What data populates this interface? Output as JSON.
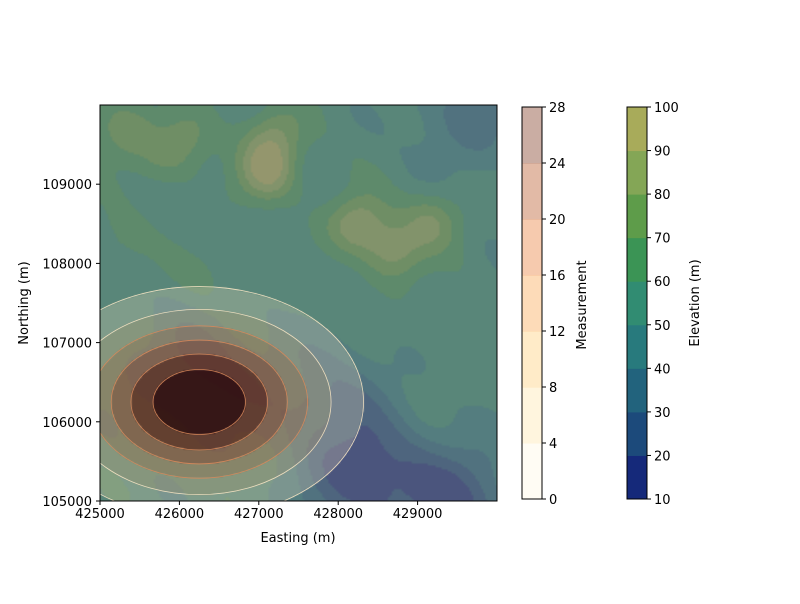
{
  "chart_data": {
    "type": "heatmap",
    "title": "",
    "xlabel": "Easting (m)",
    "ylabel": "Northing (m)",
    "xlim": [
      425000,
      430000
    ],
    "ylim": [
      105000,
      110000
    ],
    "x_ticks": [
      425000,
      426000,
      427000,
      428000,
      429000
    ],
    "y_ticks": [
      105000,
      106000,
      107000,
      108000,
      109000
    ],
    "grid": false,
    "elevation_field": {
      "label": "Elevation (m)",
      "levels": [
        10,
        20,
        30,
        40,
        50,
        60,
        70,
        80,
        90,
        100
      ],
      "tick_labels": [
        "10",
        "20",
        "30",
        "40",
        "50",
        "60",
        "70",
        "80",
        "90",
        "100"
      ],
      "colors": [
        "#15297a",
        "#1c4a7b",
        "#22637d",
        "#287a7d",
        "#318c72",
        "#3b9455",
        "#5e9c4a",
        "#84a656",
        "#a8ab5a"
      ],
      "overlay_alpha": 0.5,
      "peaks": [
        {
          "x": 426100,
          "y": 109600,
          "elev": 76
        },
        {
          "x": 427100,
          "y": 109150,
          "elev": 94
        },
        {
          "x": 427200,
          "y": 109600,
          "elev": 84
        },
        {
          "x": 428250,
          "y": 108500,
          "elev": 92
        },
        {
          "x": 428700,
          "y": 108150,
          "elev": 88
        },
        {
          "x": 429200,
          "y": 108550,
          "elev": 82
        },
        {
          "x": 425300,
          "y": 109700,
          "elev": 80
        },
        {
          "x": 425800,
          "y": 109300,
          "elev": 70
        },
        {
          "x": 425300,
          "y": 108300,
          "elev": 68
        },
        {
          "x": 426300,
          "y": 107800,
          "elev": 66
        }
      ],
      "valleys": [
        {
          "x": 428300,
          "y": 105300,
          "elev": 18
        },
        {
          "x": 429500,
          "y": 105000,
          "elev": 22
        },
        {
          "x": 427900,
          "y": 106300,
          "elev": 36
        },
        {
          "x": 429700,
          "y": 109900,
          "elev": 38
        },
        {
          "x": 426300,
          "y": 106700,
          "elev": 40
        }
      ]
    },
    "measurement_field": {
      "label": "Measurement",
      "levels": [
        0,
        4,
        8,
        12,
        16,
        20,
        24,
        28
      ],
      "tick_labels": [
        "0",
        "4",
        "8",
        "12",
        "16",
        "20",
        "24",
        "28"
      ],
      "colors": [
        "#fffbf0",
        "#fff1d0",
        "#ffe2b0",
        "#fccc9a",
        "#f2b38c",
        "#d59c80",
        "#b48a7c"
      ],
      "overlay_alpha": 0.6,
      "source": {
        "x": 426250,
        "y": 106250,
        "peak": 28
      },
      "spread_x": 2200,
      "spread_y": 1550
    }
  }
}
